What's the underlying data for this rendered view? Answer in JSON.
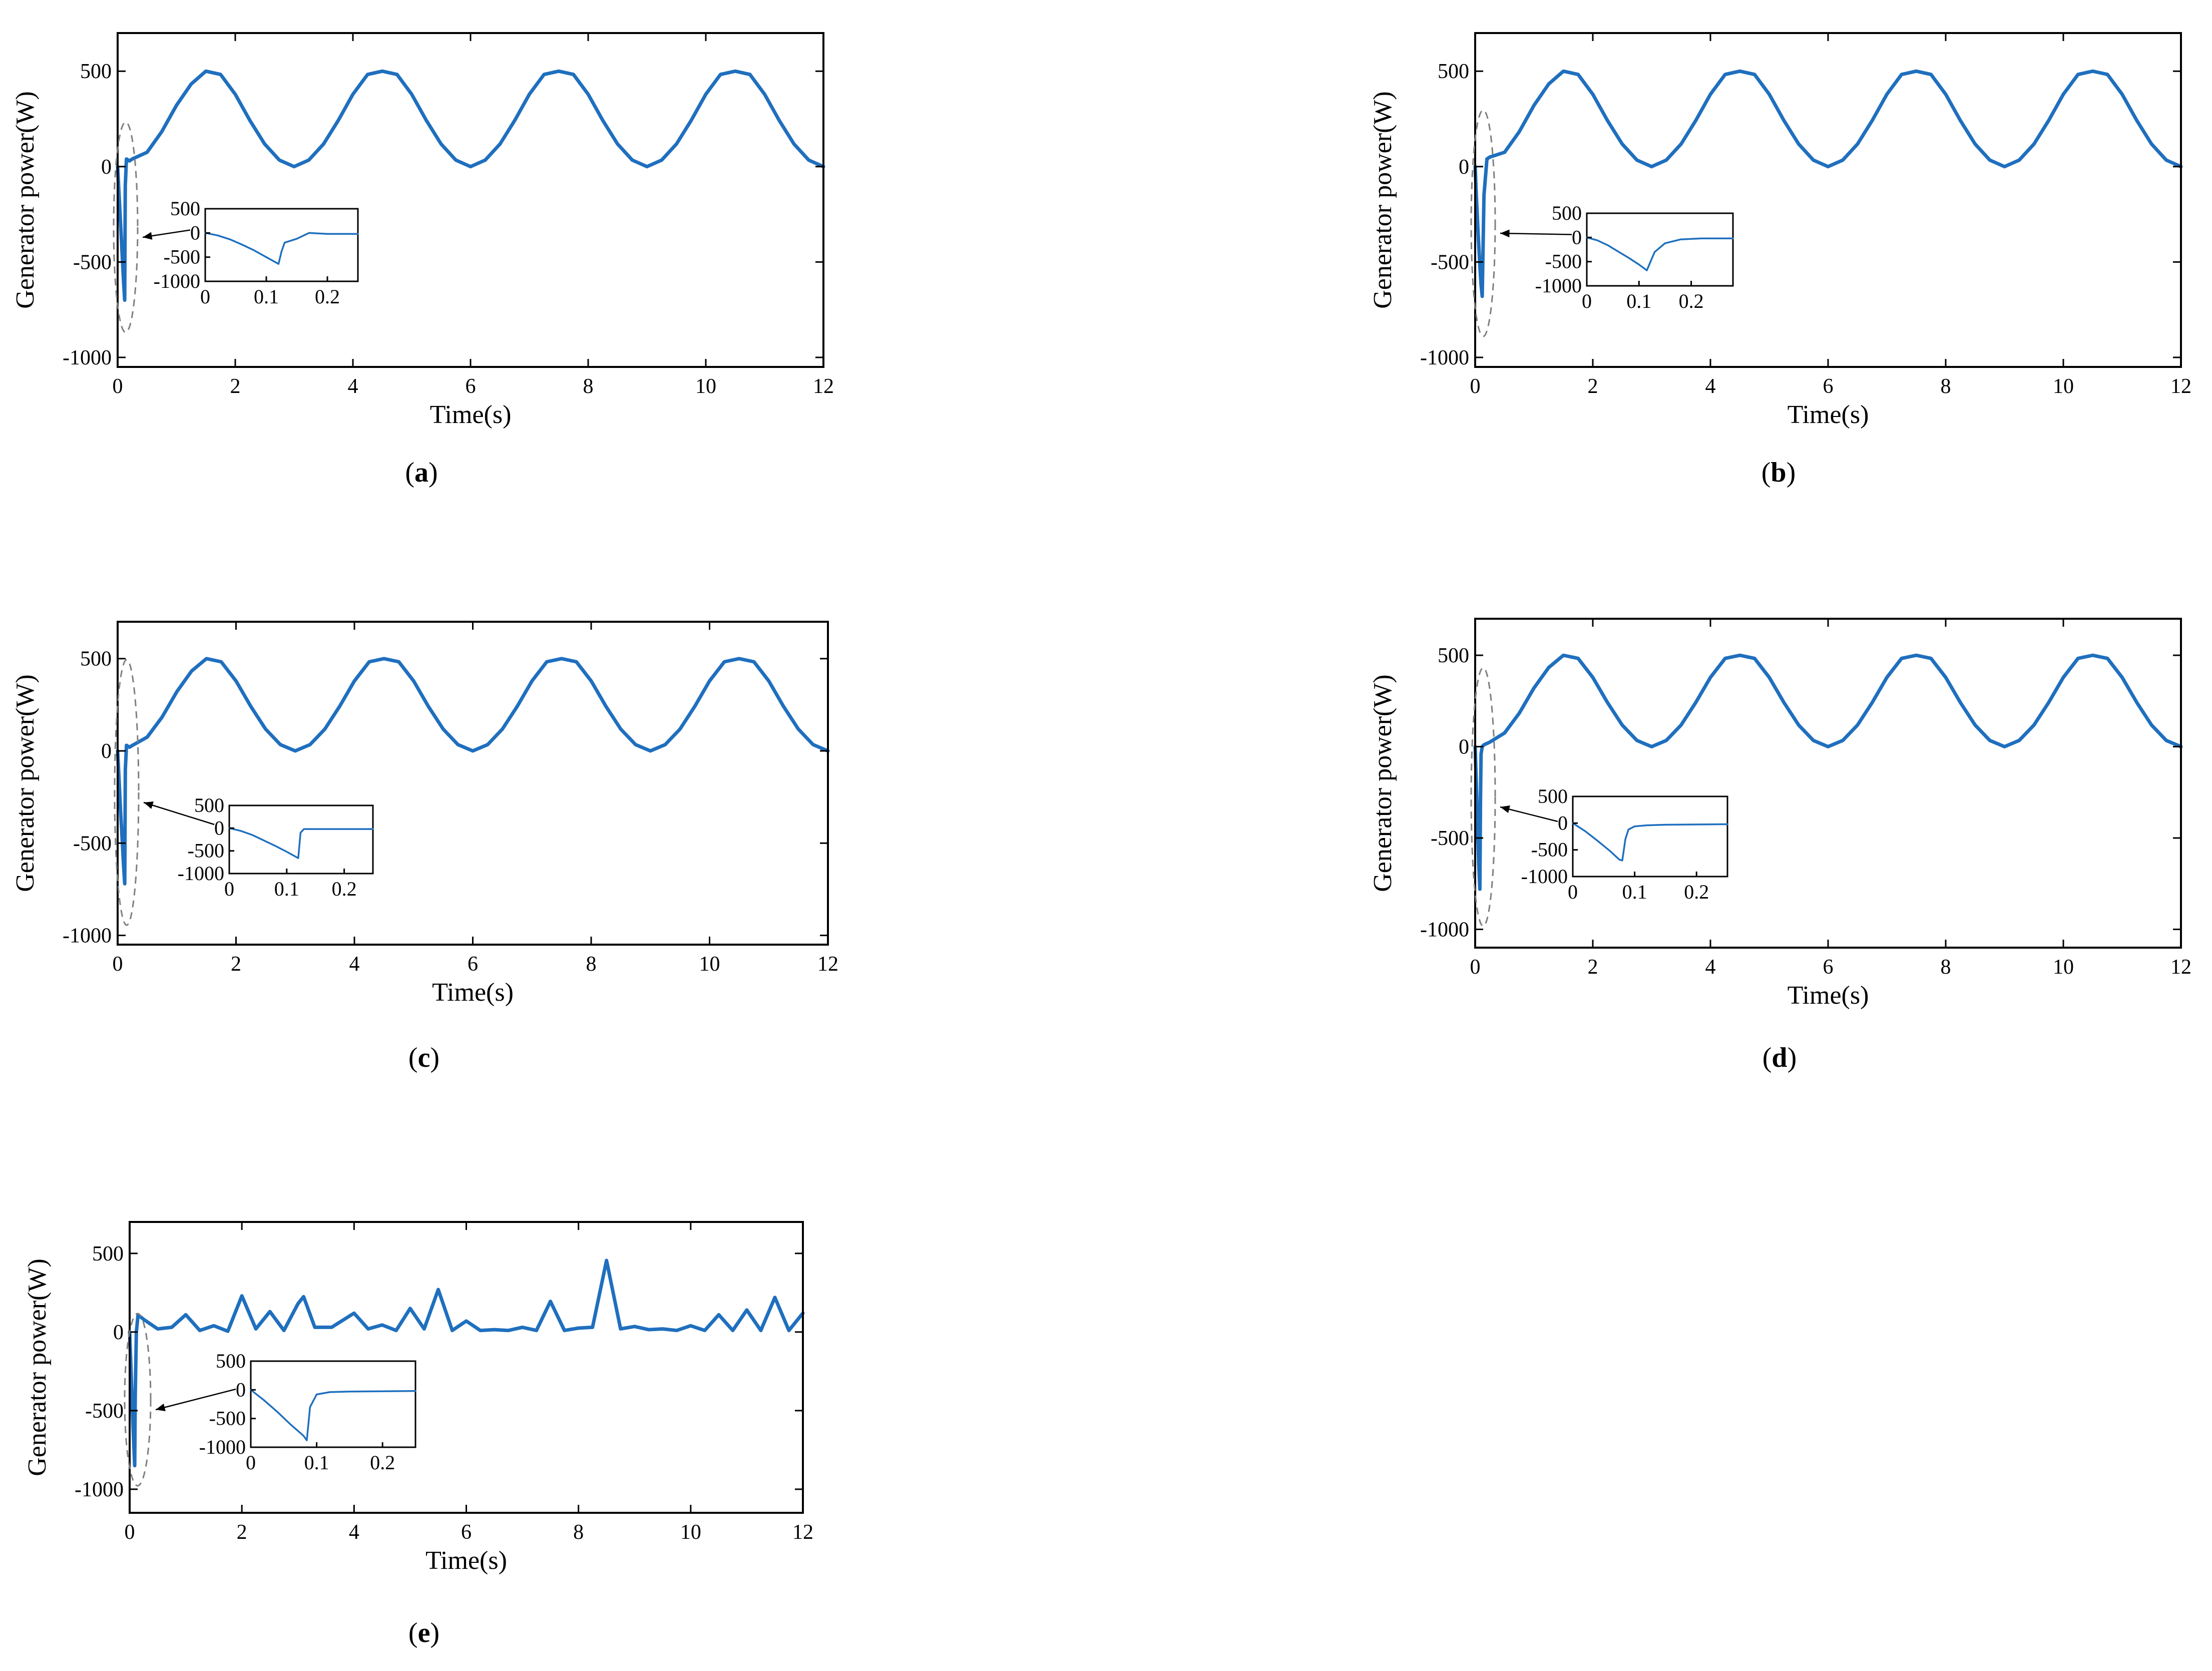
{
  "figure": {
    "colors": {
      "series": "#1f6fbe",
      "axes": "#000000",
      "zoom_marker": "#7f7f7f"
    }
  },
  "chart_data": [
    {
      "panel": "a",
      "type": "line",
      "caption": "(a)",
      "xlabel": "Time(s)",
      "ylabel": "Generator power(W)",
      "xlim": [
        0,
        12
      ],
      "ylim": [
        -1050,
        700
      ],
      "xticks": [
        0,
        2,
        4,
        6,
        8,
        10,
        12
      ],
      "yticks": [
        -1000,
        -500,
        0,
        500
      ],
      "series": [
        {
          "x": [
            0,
            0.02,
            0.05,
            0.08,
            0.1,
            0.12,
            0.13,
            0.15,
            0.2,
            0.25,
            0.5,
            0.75,
            1.0,
            1.25,
            1.5,
            1.75,
            2.0,
            2.25,
            2.5,
            2.75,
            3.0,
            3.25,
            3.5,
            3.75,
            4.0,
            4.25,
            4.5,
            4.75,
            5.0,
            5.25,
            5.5,
            5.75,
            6.0,
            6.25,
            6.5,
            6.75,
            7.0,
            7.25,
            7.5,
            7.75,
            8.0,
            8.25,
            8.5,
            8.75,
            9.0,
            9.25,
            9.5,
            9.75,
            10.0,
            10.25,
            10.5,
            10.75,
            11.0,
            11.25,
            11.5,
            11.75,
            12.0
          ],
          "y": [
            0,
            -120,
            -300,
            -480,
            -600,
            -700,
            -100,
            40,
            30,
            40,
            75,
            183,
            321,
            433,
            500,
            483,
            379,
            241,
            118,
            34,
            0,
            34,
            118,
            241,
            379,
            483,
            500,
            483,
            379,
            241,
            118,
            34,
            0,
            34,
            118,
            241,
            379,
            483,
            500,
            483,
            379,
            241,
            118,
            34,
            0,
            34,
            118,
            241,
            379,
            483,
            500,
            483,
            379,
            241,
            118,
            34,
            0
          ]
        }
      ],
      "inset": {
        "xlim": [
          0,
          0.25
        ],
        "ylim": [
          -1000,
          500
        ],
        "xticks": [
          0,
          0.1,
          0.2
        ],
        "yticks": [
          -1000,
          -500,
          0,
          500
        ],
        "x": [
          0,
          0.02,
          0.04,
          0.06,
          0.08,
          0.1,
          0.12,
          0.125,
          0.13,
          0.15,
          0.17,
          0.2,
          0.25
        ],
        "y": [
          0,
          -50,
          -130,
          -240,
          -360,
          -500,
          -640,
          -380,
          -200,
          -120,
          0,
          -20,
          -20
        ]
      }
    },
    {
      "panel": "b",
      "type": "line",
      "caption": "(b)",
      "xlabel": "Time(s)",
      "ylabel": "Generator power(W)",
      "xlim": [
        0,
        12
      ],
      "ylim": [
        -1050,
        700
      ],
      "xticks": [
        0,
        2,
        4,
        6,
        8,
        10,
        12
      ],
      "yticks": [
        -1000,
        -500,
        0,
        500
      ],
      "series": [
        {
          "x": [
            0,
            0.02,
            0.05,
            0.08,
            0.1,
            0.12,
            0.15,
            0.2,
            0.25,
            0.5,
            0.75,
            1.0,
            1.25,
            1.5,
            1.75,
            2.0,
            2.25,
            2.5,
            2.75,
            3.0,
            3.25,
            3.5,
            3.75,
            4.0,
            4.25,
            4.5,
            4.75,
            5.0,
            5.25,
            5.5,
            5.75,
            6.0,
            6.25,
            6.5,
            6.75,
            7.0,
            7.25,
            7.5,
            7.75,
            8.0,
            8.25,
            8.5,
            8.75,
            9.0,
            9.25,
            9.5,
            9.75,
            10.0,
            10.25,
            10.5,
            10.75,
            11.0,
            11.25,
            11.5,
            11.75,
            12.0
          ],
          "y": [
            0,
            -150,
            -350,
            -520,
            -620,
            -680,
            -150,
            40,
            50,
            75,
            183,
            321,
            433,
            500,
            483,
            379,
            241,
            118,
            34,
            0,
            34,
            118,
            241,
            379,
            483,
            500,
            483,
            379,
            241,
            118,
            34,
            0,
            34,
            118,
            241,
            379,
            483,
            500,
            483,
            379,
            241,
            118,
            34,
            0,
            34,
            118,
            241,
            379,
            483,
            500,
            483,
            379,
            241,
            118,
            34,
            0
          ]
        }
      ],
      "inset": {
        "xlim": [
          0,
          0.28
        ],
        "ylim": [
          -1000,
          500
        ],
        "xticks": [
          0,
          0.1,
          0.2
        ],
        "yticks": [
          -1000,
          -500,
          0,
          500
        ],
        "x": [
          0,
          0.02,
          0.04,
          0.06,
          0.08,
          0.1,
          0.115,
          0.13,
          0.15,
          0.18,
          0.22,
          0.28
        ],
        "y": [
          0,
          -60,
          -160,
          -290,
          -420,
          -560,
          -680,
          -300,
          -120,
          -40,
          -20,
          -20
        ]
      }
    },
    {
      "panel": "c",
      "type": "line",
      "caption": "(c)",
      "xlabel": "Time(s)",
      "ylabel": "Generator power(W)",
      "xlim": [
        0,
        12
      ],
      "ylim": [
        -1050,
        700
      ],
      "xticks": [
        0,
        2,
        4,
        6,
        8,
        10,
        12
      ],
      "yticks": [
        -1000,
        -500,
        0,
        500
      ],
      "series": [
        {
          "x": [
            0,
            0.02,
            0.05,
            0.08,
            0.1,
            0.12,
            0.13,
            0.15,
            0.2,
            0.25,
            0.5,
            0.75,
            1.0,
            1.25,
            1.5,
            1.75,
            2.0,
            2.25,
            2.5,
            2.75,
            3.0,
            3.25,
            3.5,
            3.75,
            4.0,
            4.25,
            4.5,
            4.75,
            5.0,
            5.25,
            5.5,
            5.75,
            6.0,
            6.25,
            6.5,
            6.75,
            7.0,
            7.25,
            7.5,
            7.75,
            8.0,
            8.25,
            8.5,
            8.75,
            9.0,
            9.25,
            9.5,
            9.75,
            10.0,
            10.25,
            10.5,
            10.75,
            11.0,
            11.25,
            11.5,
            11.75,
            12.0
          ],
          "y": [
            0,
            -130,
            -330,
            -500,
            -620,
            -720,
            -100,
            30,
            20,
            30,
            75,
            183,
            321,
            433,
            500,
            483,
            379,
            241,
            118,
            34,
            0,
            34,
            118,
            241,
            379,
            483,
            500,
            483,
            379,
            241,
            118,
            34,
            0,
            34,
            118,
            241,
            379,
            483,
            500,
            483,
            379,
            241,
            118,
            34,
            0,
            34,
            118,
            241,
            379,
            483,
            500,
            483,
            379,
            241,
            118,
            34,
            0
          ]
        }
      ],
      "inset": {
        "xlim": [
          0,
          0.25
        ],
        "ylim": [
          -1000,
          500
        ],
        "xticks": [
          0,
          0.1,
          0.2
        ],
        "yticks": [
          -1000,
          -500,
          0,
          500
        ],
        "x": [
          0,
          0.02,
          0.04,
          0.06,
          0.08,
          0.1,
          0.12,
          0.124,
          0.13,
          0.25
        ],
        "y": [
          0,
          -60,
          -150,
          -270,
          -390,
          -520,
          -660,
          -100,
          -20,
          -20
        ]
      }
    },
    {
      "panel": "d",
      "type": "line",
      "caption": "(d)",
      "xlabel": "Time(s)",
      "ylabel": "Generator power(W)",
      "xlim": [
        0,
        12
      ],
      "ylim": [
        -1100,
        700
      ],
      "xticks": [
        0,
        2,
        4,
        6,
        8,
        10,
        12
      ],
      "yticks": [
        -1000,
        -500,
        0,
        500
      ],
      "series": [
        {
          "x": [
            0,
            0.02,
            0.04,
            0.06,
            0.08,
            0.09,
            0.1,
            0.12,
            0.15,
            0.25,
            0.5,
            0.75,
            1.0,
            1.25,
            1.5,
            1.75,
            2.0,
            2.25,
            2.5,
            2.75,
            3.0,
            3.25,
            3.5,
            3.75,
            4.0,
            4.25,
            4.5,
            4.75,
            5.0,
            5.25,
            5.5,
            5.75,
            6.0,
            6.25,
            6.5,
            6.75,
            7.0,
            7.25,
            7.5,
            7.75,
            8.0,
            8.25,
            8.5,
            8.75,
            9.0,
            9.25,
            9.5,
            9.75,
            10.0,
            10.25,
            10.5,
            10.75,
            11.0,
            11.25,
            11.5,
            11.75,
            12.0
          ],
          "y": [
            0,
            -200,
            -420,
            -640,
            -780,
            -300,
            -40,
            0,
            10,
            25,
            75,
            183,
            321,
            433,
            500,
            483,
            379,
            241,
            118,
            34,
            0,
            34,
            118,
            241,
            379,
            483,
            500,
            483,
            379,
            241,
            118,
            34,
            0,
            34,
            118,
            241,
            379,
            483,
            500,
            483,
            379,
            241,
            118,
            34,
            0,
            34,
            118,
            241,
            379,
            483,
            500,
            483,
            379,
            241,
            118,
            34,
            0
          ]
        }
      ],
      "inset": {
        "xlim": [
          0,
          0.25
        ],
        "ylim": [
          -1000,
          500
        ],
        "xticks": [
          0,
          0.1,
          0.2
        ],
        "yticks": [
          -1000,
          -500,
          0,
          500
        ],
        "x": [
          0,
          0.02,
          0.04,
          0.06,
          0.075,
          0.08,
          0.085,
          0.09,
          0.1,
          0.12,
          0.15,
          0.25
        ],
        "y": [
          0,
          -150,
          -330,
          -520,
          -680,
          -700,
          -300,
          -120,
          -60,
          -40,
          -30,
          -20
        ]
      }
    },
    {
      "panel": "e",
      "type": "line",
      "caption": "(e)",
      "xlabel": "Time(s)",
      "ylabel": "Generator power(W)",
      "xlim": [
        0,
        12
      ],
      "ylim": [
        -1150,
        700
      ],
      "xticks": [
        0,
        2,
        4,
        6,
        8,
        10,
        12
      ],
      "yticks": [
        -1000,
        -500,
        0,
        500
      ],
      "series": [
        {
          "x": [
            0,
            0.03,
            0.06,
            0.09,
            0.1,
            0.12,
            0.15,
            0.25,
            0.5,
            0.75,
            1.0,
            1.25,
            1.5,
            1.75,
            2.0,
            2.25,
            2.5,
            2.75,
            3.0,
            3.1,
            3.3,
            3.6,
            4.0,
            4.25,
            4.5,
            4.75,
            5.0,
            5.25,
            5.5,
            5.75,
            6.0,
            6.25,
            6.5,
            6.75,
            7.0,
            7.25,
            7.5,
            7.75,
            8.0,
            8.25,
            8.5,
            8.75,
            9.0,
            9.25,
            9.5,
            9.75,
            10.0,
            10.25,
            10.5,
            10.75,
            11.0,
            11.25,
            11.5,
            11.75,
            12.0
          ],
          "y": [
            0,
            -300,
            -600,
            -850,
            -400,
            0,
            110,
            80,
            20,
            30,
            110,
            10,
            40,
            5,
            230,
            20,
            130,
            10,
            180,
            225,
            30,
            30,
            120,
            20,
            45,
            10,
            150,
            20,
            270,
            10,
            70,
            10,
            15,
            10,
            30,
            10,
            195,
            10,
            25,
            30,
            455,
            20,
            35,
            15,
            20,
            10,
            40,
            10,
            110,
            10,
            140,
            10,
            220,
            10,
            120
          ]
        }
      ],
      "inset": {
        "xlim": [
          0,
          0.25
        ],
        "ylim": [
          -1000,
          500
        ],
        "xticks": [
          0,
          0.1,
          0.2
        ],
        "yticks": [
          -1000,
          -500,
          0,
          500
        ],
        "x": [
          0,
          0.02,
          0.04,
          0.06,
          0.08,
          0.085,
          0.09,
          0.1,
          0.12,
          0.15,
          0.25
        ],
        "y": [
          0,
          -180,
          -380,
          -600,
          -800,
          -880,
          -300,
          -80,
          -40,
          -30,
          -20
        ]
      }
    }
  ]
}
